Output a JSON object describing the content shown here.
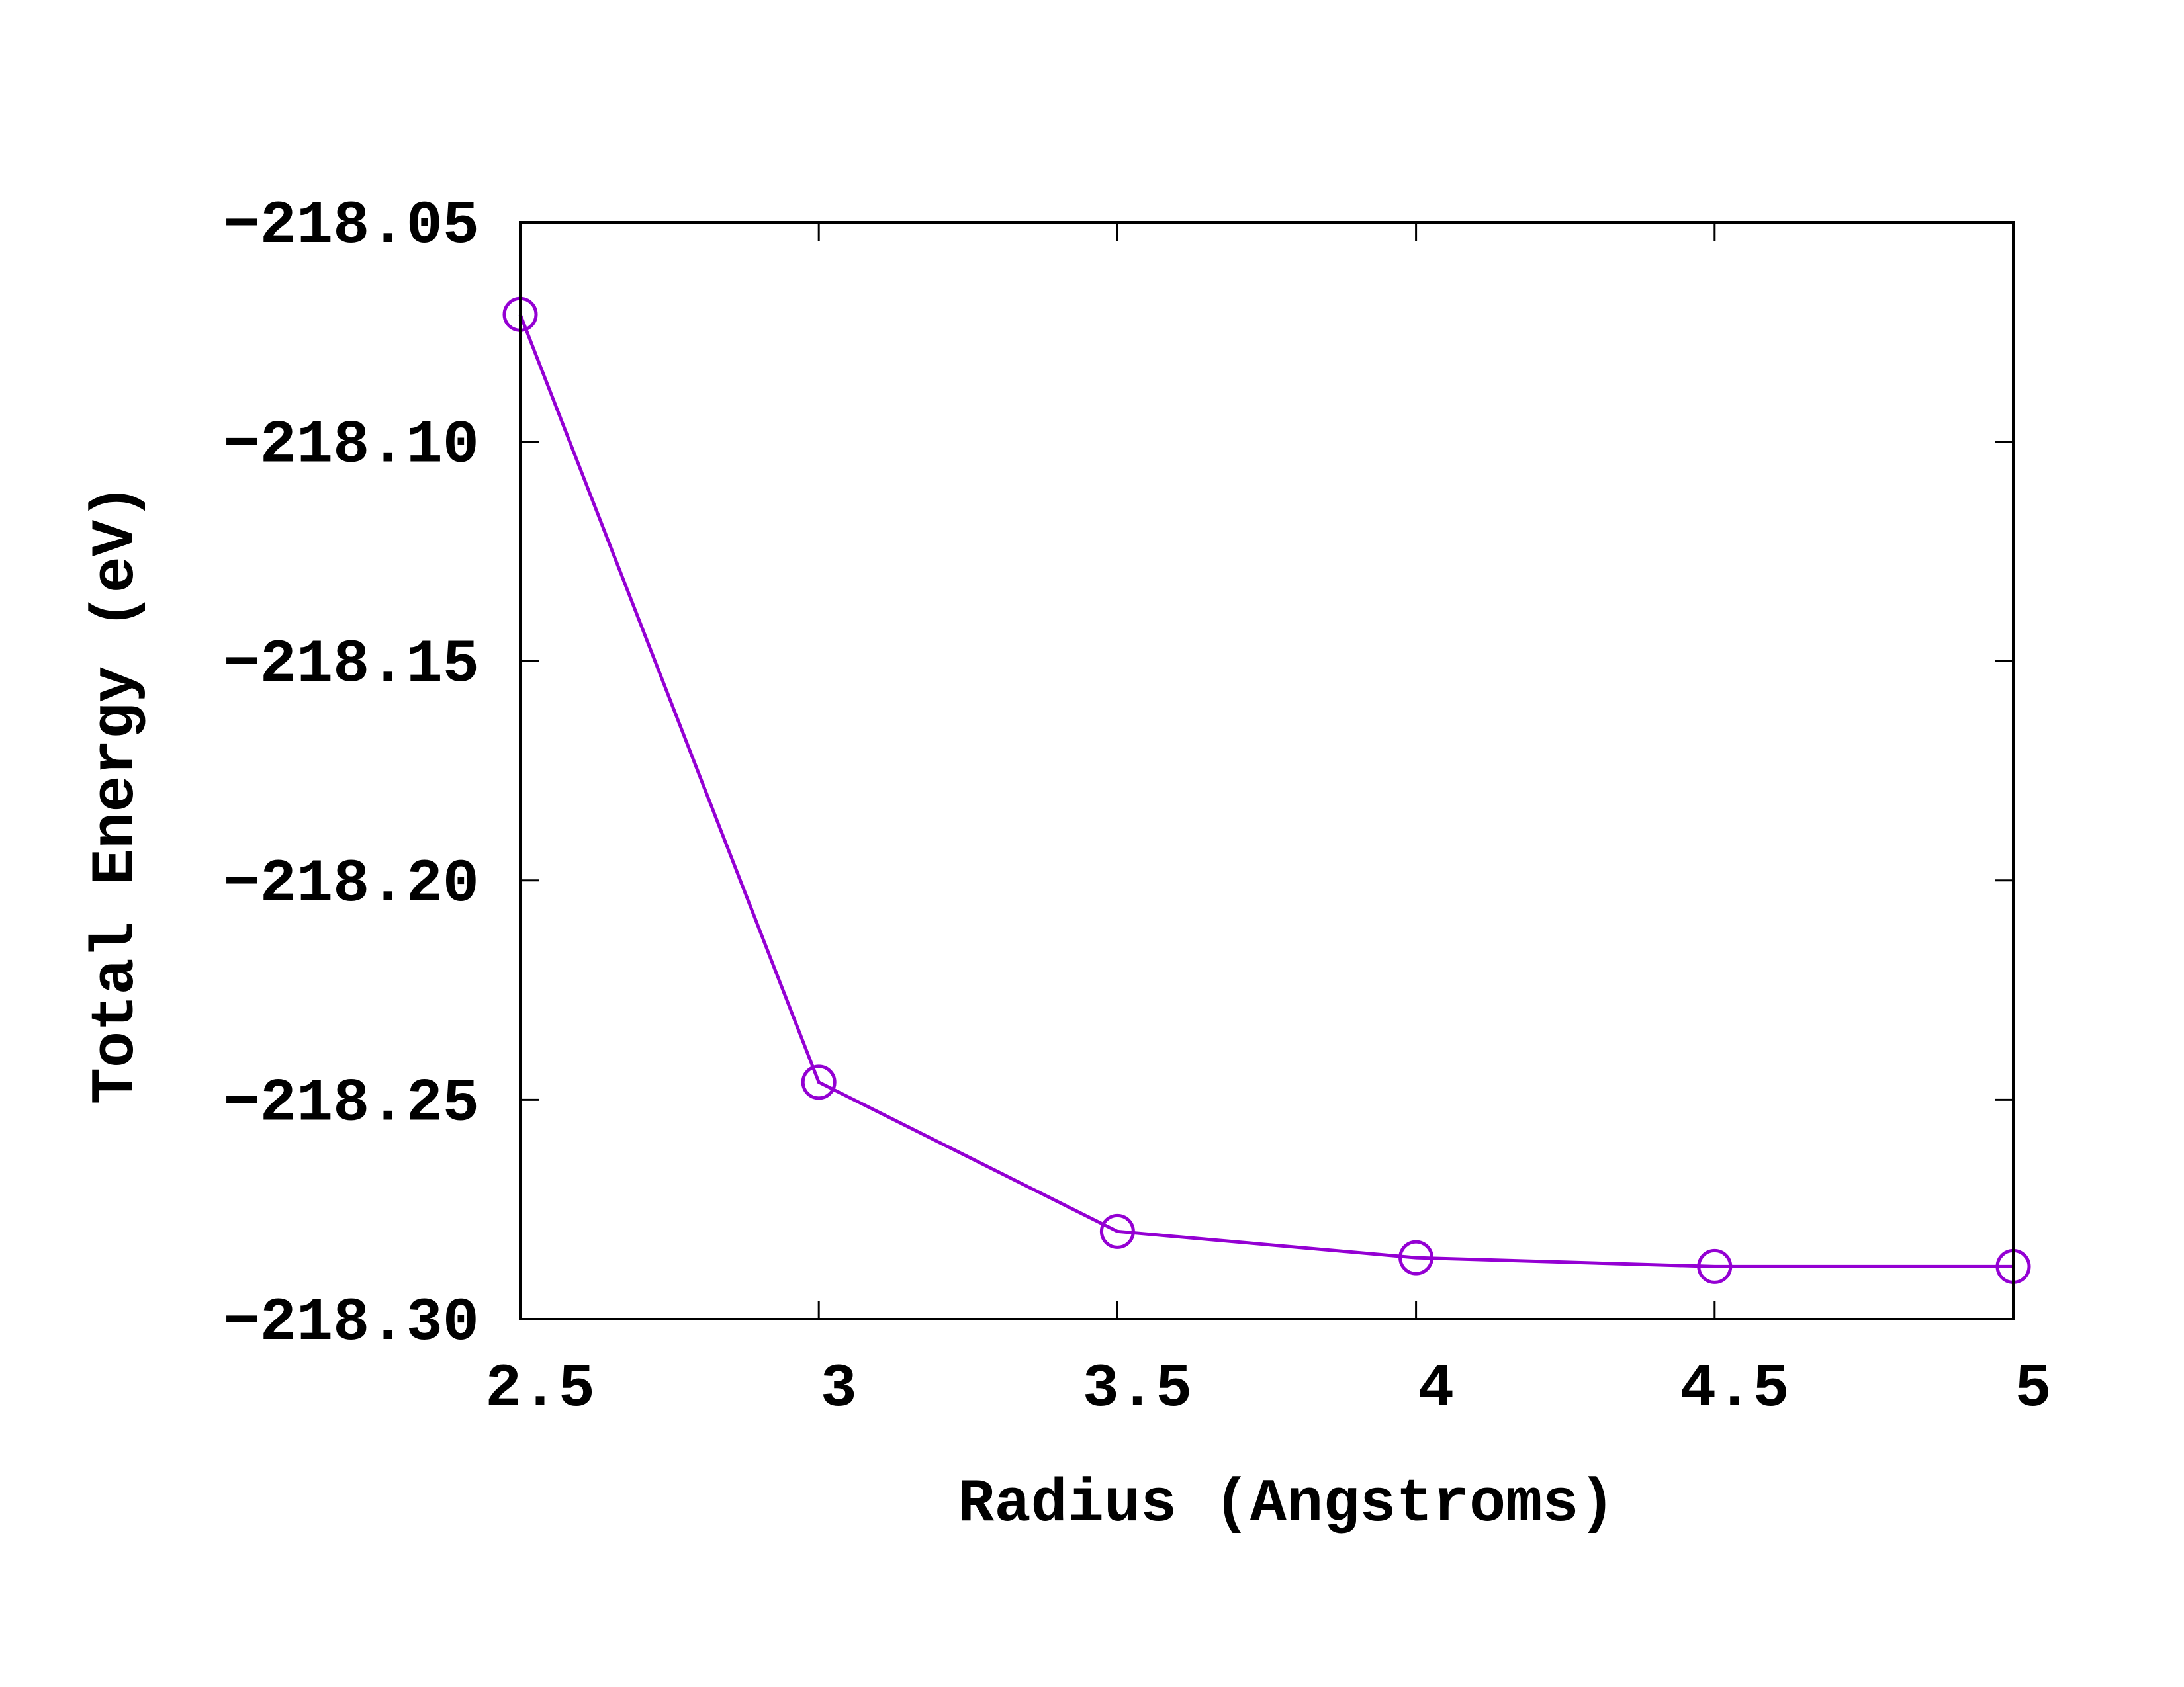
{
  "chart_data": {
    "type": "line",
    "title": "",
    "xlabel": "Radius (Angstroms)",
    "ylabel": "Total Energy (eV)",
    "xlim": [
      2.5,
      5
    ],
    "ylim": [
      -218.3,
      -218.05
    ],
    "x_ticks": [
      {
        "value": 2.5,
        "label": "2.5"
      },
      {
        "value": 3,
        "label": "3"
      },
      {
        "value": 3.5,
        "label": "3.5"
      },
      {
        "value": 4,
        "label": "4"
      },
      {
        "value": 4.5,
        "label": "4.5"
      },
      {
        "value": 5,
        "label": "5"
      }
    ],
    "y_ticks": [
      {
        "value": -218.05,
        "label": "−218.05"
      },
      {
        "value": -218.1,
        "label": "−218.10"
      },
      {
        "value": -218.15,
        "label": "−218.15"
      },
      {
        "value": -218.2,
        "label": "−218.20"
      },
      {
        "value": -218.25,
        "label": "−218.25"
      },
      {
        "value": -218.3,
        "label": "−218.30"
      }
    ],
    "grid": false,
    "legend": "none",
    "marker": "open-circle",
    "series": [
      {
        "color": "#9400d3",
        "x": [
          2.5,
          3.0,
          3.5,
          4.0,
          4.5,
          5.0
        ],
        "y": [
          -218.071,
          -218.246,
          -218.28,
          -218.286,
          -218.288,
          -218.288
        ]
      }
    ]
  }
}
